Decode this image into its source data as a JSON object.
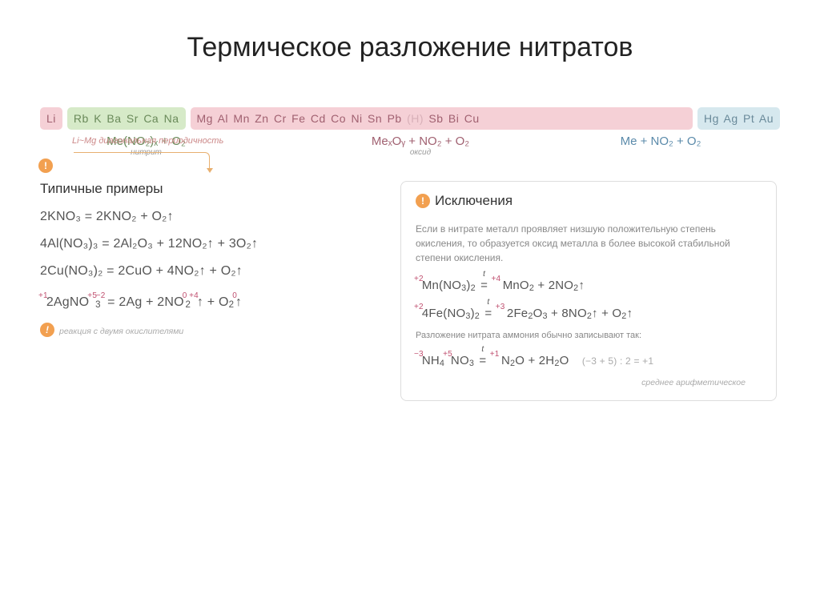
{
  "title": "Термическое разложение нитратов",
  "periodicity_note": "Li~Mg диагональная периодичность",
  "bang": "!",
  "series": {
    "li": "Li",
    "alkali": "Rb K Ba Sr Ca Na",
    "middle_pre": "Mg Al Mn Zn Cr Fe Cd Co Ni Sn Pb ",
    "middle_h": "(H)",
    "middle_post": " Sb Bi Cu",
    "noble": "Hg Ag Pt Au"
  },
  "products": {
    "p1": "Me(NO₂)ₓ + O₂",
    "p1_sub": "нитрит",
    "p2": "MeₓOᵧ + NO₂ + O₂",
    "p2_sub": "оксид",
    "p3": "Me + NO₂ + O₂"
  },
  "examples_head": "Типичные примеры",
  "exceptions_head": "Исключения",
  "examples": {
    "e1": "2KNO₃ = 2KNO₂ + O₂↑",
    "e2": "4Al(NO₃)₃ = 2Al₂O₃ + 12NO₂↑ + 3O₂↑",
    "e3": "2Cu(NO₃)₂ = 2CuO + 4NO₂↑ + O₂↑"
  },
  "ex4": {
    "o1": "+1",
    "o2": "+5",
    "o3": "−2",
    "t1": "2AgNO",
    "o4": "0",
    "t2": " = 2Ag + 2NO",
    "o5": "+4",
    "t3": "↑ + O",
    "o6": "0",
    "t4": "↑",
    "s3a": "3",
    "s2a": "2",
    "s2b": "2"
  },
  "left_foot": "реакция с двумя окислителями",
  "exc_text": "Если в нитрате металл проявляет низшую положительную степень окисления, то образуется оксид металла в более высокой стабильной степени окисления.",
  "exc_text2": "Разложение нитрата аммония обычно записывают так:",
  "exc1": {
    "o1": "+2",
    "t1": "Mn(NO",
    "s1": "3",
    "t2": ")",
    "s2": "2",
    "eq": "=",
    "o2": "+4",
    "t3": " MnO",
    "s3": "2",
    "t4": " + 2NO",
    "s4": "2",
    "t5": "↑"
  },
  "exc2": {
    "o1": "+2",
    "t1": "4Fe(NO",
    "s1": "3",
    "t2": ")",
    "s2": "2",
    "eq": "=",
    "o2": "+3",
    "t3": " 2Fe",
    "s3": "2",
    "t4": "O",
    "s4": "3",
    "t5": " + 8NO",
    "s5": "2",
    "t6": "↑ + O",
    "s6": "2",
    "t7": "↑"
  },
  "exc3": {
    "o1": "−3",
    "o2": "+5",
    "t1": "NH",
    "s1": "4",
    "t2": "NO",
    "s2": "3",
    "eq": "=",
    "o3": "+1",
    "t3": " N",
    "s3": "2",
    "t4": "O + 2H",
    "s4": "2",
    "t5": "O",
    "calc": "(−3 + 5) : 2 = +1",
    "calc_sub": "среднее арифметическое"
  }
}
